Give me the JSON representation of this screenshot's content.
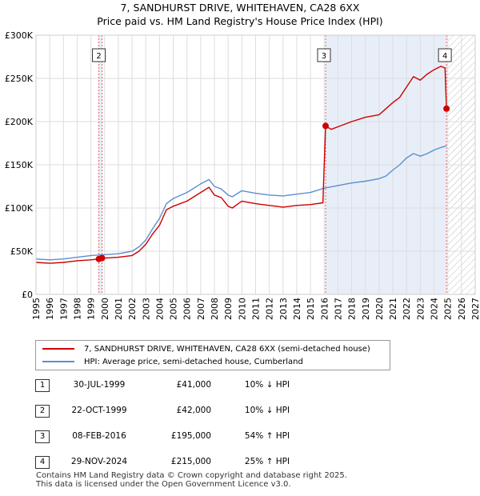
{
  "title_line1": "7, SANDHURST DRIVE, WHITEHAVEN, CA28 6XX",
  "title_line2": "Price paid vs. HM Land Registry's House Price Index (HPI)",
  "colors": {
    "property": "#cc0000",
    "hpi": "#5b8fd0",
    "shade": "#e8eef8",
    "grid": "#dddddd",
    "vline": "#e06060"
  },
  "legend": {
    "property_label": "7, SANDHURST DRIVE, WHITEHAVEN, CA28 6XX (semi-detached house)",
    "hpi_label": "HPI: Average price, semi-detached house, Cumberland"
  },
  "transactions": [
    {
      "num": "1",
      "date": "30-JUL-1999",
      "price": "£41,000",
      "hpi": "10% ↓ HPI"
    },
    {
      "num": "2",
      "date": "22-OCT-1999",
      "price": "£42,000",
      "hpi": "10% ↓ HPI"
    },
    {
      "num": "3",
      "date": "08-FEB-2016",
      "price": "£195,000",
      "hpi": "54% ↑ HPI"
    },
    {
      "num": "4",
      "date": "29-NOV-2024",
      "price": "£215,000",
      "hpi": "25% ↑ HPI"
    }
  ],
  "footer": {
    "line1": "Contains HM Land Registry data © Crown copyright and database right 2025.",
    "line2": "This data is licensed under the Open Government Licence v3.0."
  },
  "chart_data": {
    "type": "line",
    "title": "7, SANDHURST DRIVE, WHITEHAVEN, CA28 6XX",
    "subtitle": "Price paid vs. HM Land Registry's House Price Index (HPI)",
    "xlim": [
      1995,
      2027
    ],
    "ylim": [
      0,
      300000
    ],
    "x_ticks": [
      "1995",
      "1996",
      "1997",
      "1998",
      "1999",
      "2000",
      "2001",
      "2002",
      "2003",
      "2004",
      "2005",
      "2006",
      "2007",
      "2008",
      "2009",
      "2010",
      "2011",
      "2012",
      "2013",
      "2014",
      "2015",
      "2016",
      "2017",
      "2018",
      "2019",
      "2020",
      "2021",
      "2022",
      "2023",
      "2024",
      "2025",
      "2026",
      "2027"
    ],
    "y_ticks": [
      {
        "value": 0,
        "label": "£0"
      },
      {
        "value": 50000,
        "label": "£50K"
      },
      {
        "value": 100000,
        "label": "£100K"
      },
      {
        "value": 150000,
        "label": "£150K"
      },
      {
        "value": 200000,
        "label": "£200K"
      },
      {
        "value": 250000,
        "label": "£250K"
      },
      {
        "value": 300000,
        "label": "£300K"
      }
    ],
    "shaded_ranges": [
      [
        1999.58,
        1999.81
      ],
      [
        2016.1,
        2024.91
      ]
    ],
    "hatched_from": 2025.0,
    "markers": [
      {
        "label": "1",
        "x": 1999.58,
        "y": 41000
      },
      {
        "label": "2",
        "x": 1999.81,
        "y": 42000
      },
      {
        "label": "3",
        "x": 2016.1,
        "y": 195000
      },
      {
        "label": "4",
        "x": 2024.91,
        "y": 215000
      }
    ],
    "series": [
      {
        "name": "7, SANDHURST DRIVE, WHITEHAVEN, CA28 6XX (semi-detached house)",
        "x": [
          1995,
          1996,
          1997,
          1998,
          1999.0,
          1999.58,
          1999.81,
          2000,
          2001,
          2002,
          2002.5,
          2003,
          2003.5,
          2004,
          2004.5,
          2005,
          2006,
          2007,
          2007.6,
          2008,
          2008.5,
          2009,
          2009.3,
          2010,
          2011,
          2012,
          2013,
          2014,
          2015,
          2015.9,
          2016.1,
          2016.5,
          2017,
          2018,
          2019,
          2020,
          2020.5,
          2021,
          2021.5,
          2022,
          2022.5,
          2023,
          2023.5,
          2024,
          2024.5,
          2024.8,
          2024.91
        ],
        "y": [
          37000,
          36000,
          37000,
          39000,
          40000,
          41000,
          42000,
          42000,
          43000,
          45000,
          50000,
          58000,
          70000,
          80000,
          98000,
          102000,
          108000,
          118000,
          124000,
          115000,
          112000,
          102000,
          100000,
          108000,
          105000,
          103000,
          101000,
          103000,
          104000,
          106000,
          195000,
          191000,
          194000,
          200000,
          205000,
          208000,
          215000,
          222000,
          228000,
          240000,
          252000,
          248000,
          255000,
          260000,
          264000,
          262000,
          215000
        ]
      },
      {
        "name": "HPI: Average price, semi-detached house, Cumberland",
        "x": [
          1995,
          1996,
          1997,
          1998,
          1999,
          2000,
          2001,
          2002,
          2002.5,
          2003,
          2003.5,
          2004,
          2004.5,
          2005,
          2006,
          2007,
          2007.6,
          2008,
          2008.5,
          2009,
          2009.3,
          2010,
          2011,
          2012,
          2013,
          2014,
          2015,
          2016,
          2017,
          2018,
          2019,
          2020,
          2020.5,
          2021,
          2021.5,
          2022,
          2022.5,
          2023,
          2023.5,
          2024,
          2024.5,
          2024.91
        ],
        "y": [
          41000,
          40000,
          41000,
          43000,
          45000,
          46000,
          47000,
          50000,
          55000,
          63000,
          76000,
          88000,
          105000,
          111000,
          118000,
          128000,
          133000,
          125000,
          122000,
          115000,
          113000,
          120000,
          117000,
          115000,
          114000,
          116000,
          118000,
          123000,
          126000,
          129000,
          131000,
          134000,
          137000,
          144000,
          150000,
          158000,
          163000,
          160000,
          163000,
          167000,
          170000,
          172000
        ]
      }
    ]
  }
}
